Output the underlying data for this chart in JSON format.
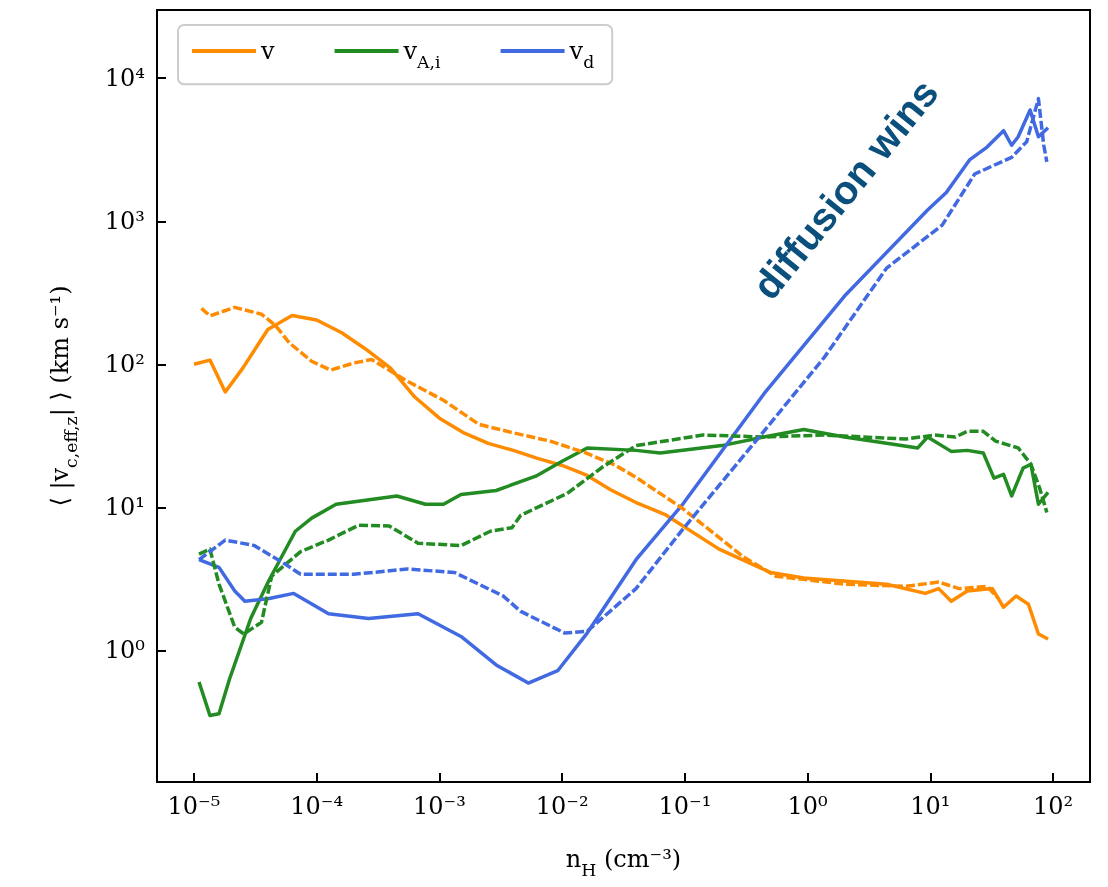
{
  "chart_data": {
    "type": "line",
    "xlabel": "n$_{H}$ (cm⁻³)",
    "ylabel": "⟨ |v$_{c,eff,z}$| ⟩ (km s⁻¹)",
    "log": "xy",
    "grid": false,
    "legend": "top left",
    "marker": "none",
    "xlim": [
      5e-06,
      200
    ],
    "ylim": [
      0.12,
      30000
    ],
    "xticks": [
      {
        "value": 1e-05,
        "label": "10⁻⁵"
      },
      {
        "value": 0.0001,
        "label": "10⁻⁴"
      },
      {
        "value": 0.001,
        "label": "10⁻³"
      },
      {
        "value": 0.01,
        "label": "10⁻²"
      },
      {
        "value": 0.1,
        "label": "10⁻¹"
      },
      {
        "value": 1,
        "label": "10⁰"
      },
      {
        "value": 10,
        "label": "10¹"
      },
      {
        "value": 100,
        "label": "10²"
      }
    ],
    "yticks": [
      {
        "value": 1,
        "label": "10⁰"
      },
      {
        "value": 10,
        "label": "10¹"
      },
      {
        "value": 100,
        "label": "10²"
      },
      {
        "value": 1000,
        "label": "10³"
      },
      {
        "value": 10000,
        "label": "10⁴"
      }
    ],
    "annotations": [
      "diffusion wins"
    ],
    "series": [
      {
        "name": "v",
        "color": "#ff8c00",
        "line_style": "solid",
        "x": [
          1e-05,
          1.35e-05,
          1.8e-05,
          2.5e-05,
          4e-05,
          6.3e-05,
          0.0001,
          0.00016,
          0.00025,
          0.0004,
          0.00063,
          0.001,
          0.0016,
          0.0025,
          0.004,
          0.0063,
          0.01,
          0.016,
          0.025,
          0.04,
          0.069,
          0.19,
          0.5,
          0.93,
          4.4,
          9.1,
          11.7,
          14.8,
          20,
          32,
          39.5,
          50,
          63,
          76,
          91
        ],
        "values": [
          100,
          107,
          64,
          94,
          175,
          219,
          204,
          166,
          128,
          94,
          59,
          42,
          33,
          28,
          25,
          22,
          19.6,
          16.7,
          13.2,
          10.8,
          8.9,
          5.1,
          3.5,
          3.2,
          2.9,
          2.5,
          2.7,
          2.2,
          2.6,
          2.7,
          2.0,
          2.4,
          2.1,
          1.3,
          1.2
        ]
      },
      {
        "name": "v$_{A,i}$",
        "color": "#228b22",
        "line_style": "solid",
        "x": [
          1.1e-05,
          1.35e-05,
          1.6e-05,
          1.95e-05,
          2.9e-05,
          4.1e-05,
          6.7e-05,
          9.1e-05,
          0.000144,
          0.00025,
          0.00045,
          0.00077,
          0.00108,
          0.0015,
          0.0029,
          0.0061,
          0.01,
          0.016,
          0.04,
          0.063,
          0.2,
          0.44,
          0.93,
          2,
          4.4,
          7.9,
          9.5,
          14.8,
          20,
          27,
          33,
          39.5,
          46,
          57,
          66,
          76,
          91
        ],
        "values": [
          0.6,
          0.35,
          0.36,
          0.63,
          1.67,
          3.1,
          6.8,
          8.4,
          10.5,
          11.2,
          12,
          10.5,
          10.5,
          12.3,
          13.1,
          16.5,
          21,
          26,
          25,
          24,
          27,
          31,
          35,
          31,
          28,
          26,
          31,
          24.6,
          25,
          24,
          16,
          17,
          12,
          18.8,
          20,
          10.5,
          12.7
        ]
      },
      {
        "name": "v$_{d}$",
        "color": "#4169e1",
        "line_style": "solid",
        "x": [
          1.1e-05,
          1.6e-05,
          2.15e-05,
          2.6e-05,
          4.1e-05,
          6.5e-05,
          0.000125,
          0.000265,
          0.00067,
          0.0015,
          0.0029,
          0.0053,
          0.0092,
          0.016,
          0.04,
          0.096,
          0.44,
          2,
          9.5,
          13.5,
          21,
          29,
          39.5,
          46,
          52,
          65,
          76,
          91
        ],
        "values": [
          4.3,
          3.8,
          2.6,
          2.2,
          2.3,
          2.5,
          1.8,
          1.67,
          1.8,
          1.25,
          0.79,
          0.59,
          0.72,
          1.32,
          4.3,
          10.5,
          62,
          300,
          1200,
          1590,
          2700,
          3300,
          4300,
          3400,
          3900,
          6000,
          3900,
          4500
        ]
      },
      {
        "color": "#ff8c00",
        "line_style": "dashed",
        "x": [
          1.15e-05,
          1.35e-05,
          2.15e-05,
          3.55e-05,
          4.6e-05,
          6e-05,
          9.1e-05,
          0.00013,
          0.0002,
          0.00028,
          0.00055,
          0.00108,
          0.0021,
          0.0041,
          0.008,
          0.0156,
          0.027,
          0.04,
          0.096,
          0.3,
          0.55,
          2,
          6.3,
          11.7,
          17.1,
          29,
          36
        ],
        "values": [
          246,
          218,
          250,
          224,
          187,
          141,
          105,
          91,
          102,
          108,
          76,
          56,
          38,
          33,
          29,
          24,
          19.7,
          16.2,
          9.8,
          4.5,
          3.3,
          2.9,
          2.8,
          3.0,
          2.7,
          2.8,
          2.3
        ]
      },
      {
        "color": "#228b22",
        "line_style": "dashed",
        "x": [
          1.1e-05,
          1.35e-05,
          1.6e-05,
          2.15e-05,
          2.55e-05,
          3.55e-05,
          4.3e-05,
          7.4e-05,
          0.000125,
          0.00022,
          0.00039,
          0.00067,
          0.0015,
          0.0026,
          0.0039,
          0.0046,
          0.011,
          0.0215,
          0.04,
          0.14,
          0.44,
          1.37,
          6.3,
          10.8,
          16,
          20,
          27,
          34,
          52,
          66,
          78,
          89
        ],
        "values": [
          4.7,
          5.1,
          2.9,
          1.45,
          1.3,
          1.57,
          3.3,
          4.9,
          5.9,
          7.5,
          7.4,
          5.6,
          5.4,
          6.8,
          7.2,
          8.8,
          12.5,
          19.2,
          27,
          32,
          31,
          32,
          30,
          32,
          31,
          34,
          34,
          29,
          26,
          20,
          13.5,
          9.2
        ]
      },
      {
        "color": "#4169e1",
        "line_style": "dashed",
        "x": [
          1.1e-05,
          1.8e-05,
          3.1e-05,
          5.3e-05,
          7.4e-05,
          0.0002,
          0.00055,
          0.00133,
          0.0033,
          0.0046,
          0.0105,
          0.016,
          0.04,
          0.096,
          0.44,
          1.37,
          4.4,
          12.5,
          23,
          46,
          61,
          76,
          84,
          89
        ],
        "values": [
          4.3,
          5.9,
          5.4,
          4.1,
          3.4,
          3.4,
          3.7,
          3.5,
          2.4,
          1.87,
          1.32,
          1.36,
          2.7,
          7.0,
          34,
          112,
          470,
          940,
          2140,
          2800,
          3600,
          7200,
          3400,
          2600
        ]
      }
    ]
  }
}
